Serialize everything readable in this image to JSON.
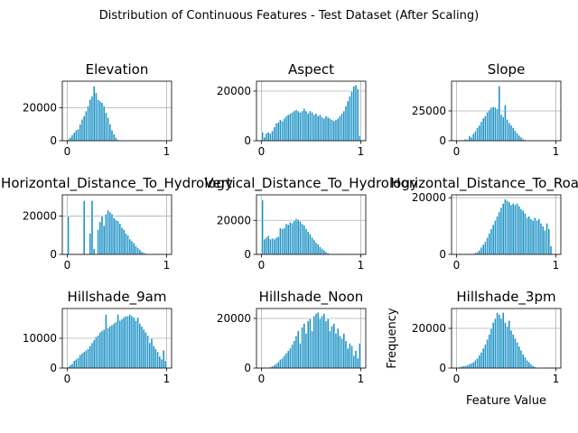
{
  "figure": {
    "suptitle": "Distribution of Continuous Features - Test Dataset (After Scaling)"
  },
  "chart_data": [
    {
      "type": "bar",
      "title": "Elevation",
      "xlim": [
        -0.05,
        1.05
      ],
      "ylim": [
        0,
        36000
      ],
      "xticks": [
        0,
        1
      ],
      "xtick_labels": [
        "0",
        "1"
      ],
      "yticks": [
        0,
        20000
      ],
      "ytick_labels": [
        "0",
        "20000"
      ],
      "grid": true,
      "xlabel": "",
      "ylabel": "",
      "bin_start": 0.0,
      "bin_width": 0.02,
      "values": [
        1000,
        2000,
        3500,
        5000,
        6500,
        7000,
        10000,
        13000,
        15000,
        18000,
        21000,
        25000,
        27000,
        33000,
        29000,
        25000,
        24000,
        23000,
        21000,
        17000,
        14000,
        10000,
        6500,
        4000,
        2000,
        700,
        300,
        100,
        0,
        0,
        0,
        0,
        0,
        0,
        0,
        0,
        0,
        0,
        0,
        0,
        0,
        0,
        0,
        0,
        0,
        0,
        0,
        0,
        0,
        100
      ]
    },
    {
      "type": "bar",
      "title": "Aspect",
      "xlim": [
        -0.05,
        1.05
      ],
      "ylim": [
        0,
        24000
      ],
      "xticks": [
        0,
        1
      ],
      "xtick_labels": [
        "0",
        "1"
      ],
      "yticks": [
        0,
        20000
      ],
      "ytick_labels": [
        "0",
        "20000"
      ],
      "grid": true,
      "xlabel": "",
      "ylabel": "",
      "bin_start": 0.0,
      "bin_width": 0.02,
      "values": [
        3500,
        1500,
        3000,
        3500,
        3000,
        4000,
        5500,
        7000,
        7500,
        8500,
        8000,
        9000,
        10000,
        10500,
        11000,
        11500,
        12000,
        12500,
        12000,
        11500,
        12000,
        13000,
        12000,
        11000,
        12000,
        11500,
        10500,
        11000,
        10000,
        10500,
        9500,
        9000,
        10000,
        9500,
        9000,
        8500,
        8000,
        8500,
        9000,
        10000,
        11000,
        12000,
        14000,
        16000,
        18000,
        20000,
        22000,
        22500,
        21000,
        2000
      ]
    },
    {
      "type": "bar",
      "title": "Slope",
      "xlim": [
        -0.05,
        1.05
      ],
      "ylim": [
        0,
        50000
      ],
      "xticks": [
        0,
        1
      ],
      "xtick_labels": [
        "0",
        "1"
      ],
      "yticks": [
        0,
        25000
      ],
      "ytick_labels": [
        "0",
        "25000"
      ],
      "grid": true,
      "xlabel": "",
      "ylabel": "",
      "bin_start": 0.0,
      "bin_width": 0.02,
      "values": [
        0,
        0,
        0,
        0,
        1500,
        1000,
        4000,
        3000,
        6000,
        8000,
        11000,
        13000,
        16000,
        19000,
        21000,
        24000,
        26000,
        28000,
        28500,
        28000,
        27000,
        46000,
        22000,
        20000,
        30000,
        18000,
        15000,
        13000,
        11000,
        8500,
        6500,
        4500,
        3000,
        1500,
        800,
        400,
        100,
        0,
        0,
        0,
        0,
        0,
        0,
        0,
        0,
        0,
        0,
        0,
        0,
        0
      ]
    },
    {
      "type": "bar",
      "title": "Horizontal_Distance_To_Hydrology",
      "xlim": [
        -0.05,
        1.05
      ],
      "ylim": [
        0,
        31000
      ],
      "xticks": [
        0,
        1
      ],
      "xtick_labels": [
        "0",
        "1"
      ],
      "yticks": [
        0,
        20000
      ],
      "ytick_labels": [
        "0",
        "20000"
      ],
      "grid": true,
      "xlabel": "",
      "ylabel": "",
      "bin_start": 0.0,
      "bin_width": 0.02,
      "values": [
        20000,
        0,
        0,
        0,
        0,
        0,
        0,
        0,
        28000,
        0,
        0,
        11000,
        28000,
        3000,
        0,
        13000,
        17000,
        20000,
        15000,
        21000,
        23000,
        22000,
        21000,
        19000,
        18000,
        17500,
        16000,
        14000,
        13000,
        11000,
        10000,
        8000,
        7000,
        6000,
        4500,
        3500,
        2500,
        1500,
        1000,
        500,
        300,
        100,
        0,
        0,
        0,
        0,
        0,
        0,
        0,
        0
      ]
    },
    {
      "type": "bar",
      "title": "Vertical_Distance_To_Hydrology",
      "xlim": [
        -0.05,
        1.05
      ],
      "ylim": [
        0,
        35000
      ],
      "xticks": [
        0,
        1
      ],
      "xtick_labels": [
        "0",
        "1"
      ],
      "yticks": [
        0,
        20000
      ],
      "ytick_labels": [
        "0",
        "20000"
      ],
      "grid": true,
      "xlabel": "",
      "ylabel": "",
      "bin_start": 0.0,
      "bin_width": 0.02,
      "values": [
        32000,
        9000,
        10000,
        11000,
        9000,
        9500,
        9000,
        10000,
        10500,
        15500,
        15000,
        15500,
        18000,
        17500,
        19000,
        18500,
        20000,
        21000,
        20500,
        19500,
        18000,
        17000,
        15000,
        13500,
        12000,
        10000,
        8500,
        7000,
        6000,
        4500,
        3500,
        2500,
        1500,
        800,
        400,
        200,
        100,
        0,
        0,
        0,
        0,
        0,
        0,
        0,
        0,
        0,
        0,
        0,
        0,
        0
      ]
    },
    {
      "type": "bar",
      "title": "Horizontal_Distance_To_Roadways",
      "xlim": [
        -0.05,
        1.05
      ],
      "ylim": [
        0,
        21000
      ],
      "xticks": [
        0,
        1
      ],
      "xtick_labels": [
        "0",
        "1"
      ],
      "yticks": [
        0,
        20000
      ],
      "ytick_labels": [
        "0",
        "20000"
      ],
      "grid": true,
      "xlabel": "",
      "ylabel": "",
      "bin_start": 0.0,
      "bin_width": 0.02,
      "values": [
        0,
        0,
        0,
        0,
        0,
        0,
        0,
        0,
        300,
        600,
        900,
        1500,
        2500,
        3500,
        4500,
        6000,
        7500,
        9000,
        10500,
        12000,
        13500,
        15000,
        16500,
        18000,
        19500,
        19000,
        18500,
        17500,
        18000,
        17500,
        18000,
        17000,
        16000,
        15500,
        14500,
        13000,
        13500,
        12500,
        12000,
        13000,
        12000,
        12500,
        11000,
        10000,
        8500,
        11000,
        9000,
        3000,
        0,
        0
      ]
    },
    {
      "type": "bar",
      "title": "Hillshade_9am",
      "xlim": [
        -0.05,
        1.05
      ],
      "ylim": [
        0,
        20000
      ],
      "xticks": [
        0,
        1
      ],
      "xtick_labels": [
        "0",
        "1"
      ],
      "yticks": [
        0,
        10000
      ],
      "ytick_labels": [
        "0",
        "10000"
      ],
      "grid": true,
      "xlabel": "",
      "ylabel": "",
      "bin_start": 0.0,
      "bin_width": 0.02,
      "values": [
        500,
        1000,
        1500,
        2500,
        3000,
        3500,
        4500,
        5000,
        5500,
        6000,
        6500,
        7500,
        8500,
        9500,
        10500,
        11000,
        12000,
        12500,
        13000,
        18000,
        13500,
        14000,
        14500,
        15000,
        15500,
        18000,
        16000,
        16500,
        17000,
        17500,
        17500,
        18000,
        17500,
        17000,
        16000,
        17000,
        15000,
        14000,
        13000,
        12000,
        11000,
        8500,
        10000,
        7500,
        6500,
        5500,
        4000,
        3000,
        6000,
        2500
      ]
    },
    {
      "type": "bar",
      "title": "Hillshade_Noon",
      "xlim": [
        -0.05,
        1.05
      ],
      "ylim": [
        0,
        24000
      ],
      "xticks": [
        0,
        1
      ],
      "xtick_labels": [
        "0",
        "1"
      ],
      "yticks": [
        0,
        20000
      ],
      "ytick_labels": [
        "0",
        "20000"
      ],
      "grid": true,
      "xlabel": "",
      "ylabel": "",
      "bin_start": 0.0,
      "bin_width": 0.02,
      "values": [
        0,
        0,
        0,
        200,
        500,
        800,
        1200,
        1800,
        2500,
        3500,
        4000,
        5000,
        6000,
        7000,
        8000,
        9500,
        11000,
        13000,
        15000,
        10000,
        16500,
        18000,
        14000,
        19000,
        20000,
        15000,
        21000,
        22000,
        22500,
        20000,
        21000,
        22000,
        19000,
        20000,
        15000,
        17000,
        18000,
        14000,
        16000,
        13000,
        12000,
        14000,
        11000,
        8000,
        10000,
        9000,
        5000,
        7000,
        4000,
        10000
      ]
    },
    {
      "type": "bar",
      "title": "Hillshade_3pm",
      "xlim": [
        -0.05,
        1.05
      ],
      "ylim": [
        0,
        30000
      ],
      "xticks": [
        0,
        1
      ],
      "xtick_labels": [
        "0",
        "1"
      ],
      "yticks": [
        0,
        20000
      ],
      "ytick_labels": [
        "0",
        "20000"
      ],
      "grid": true,
      "xlabel": "Feature Value",
      "ylabel": "Frequency",
      "bin_start": 0.0,
      "bin_width": 0.02,
      "values": [
        0,
        500,
        800,
        1000,
        1200,
        1500,
        2000,
        2500,
        3000,
        4000,
        5000,
        6500,
        8000,
        10000,
        12000,
        14500,
        17000,
        20000,
        23000,
        25000,
        28000,
        27000,
        25000,
        28000,
        23000,
        21000,
        24000,
        19000,
        17000,
        15000,
        13000,
        11000,
        9000,
        7000,
        5500,
        4000,
        3000,
        2000,
        1200,
        700,
        300,
        100,
        0,
        0,
        0,
        0,
        0,
        0,
        0,
        0
      ]
    }
  ]
}
